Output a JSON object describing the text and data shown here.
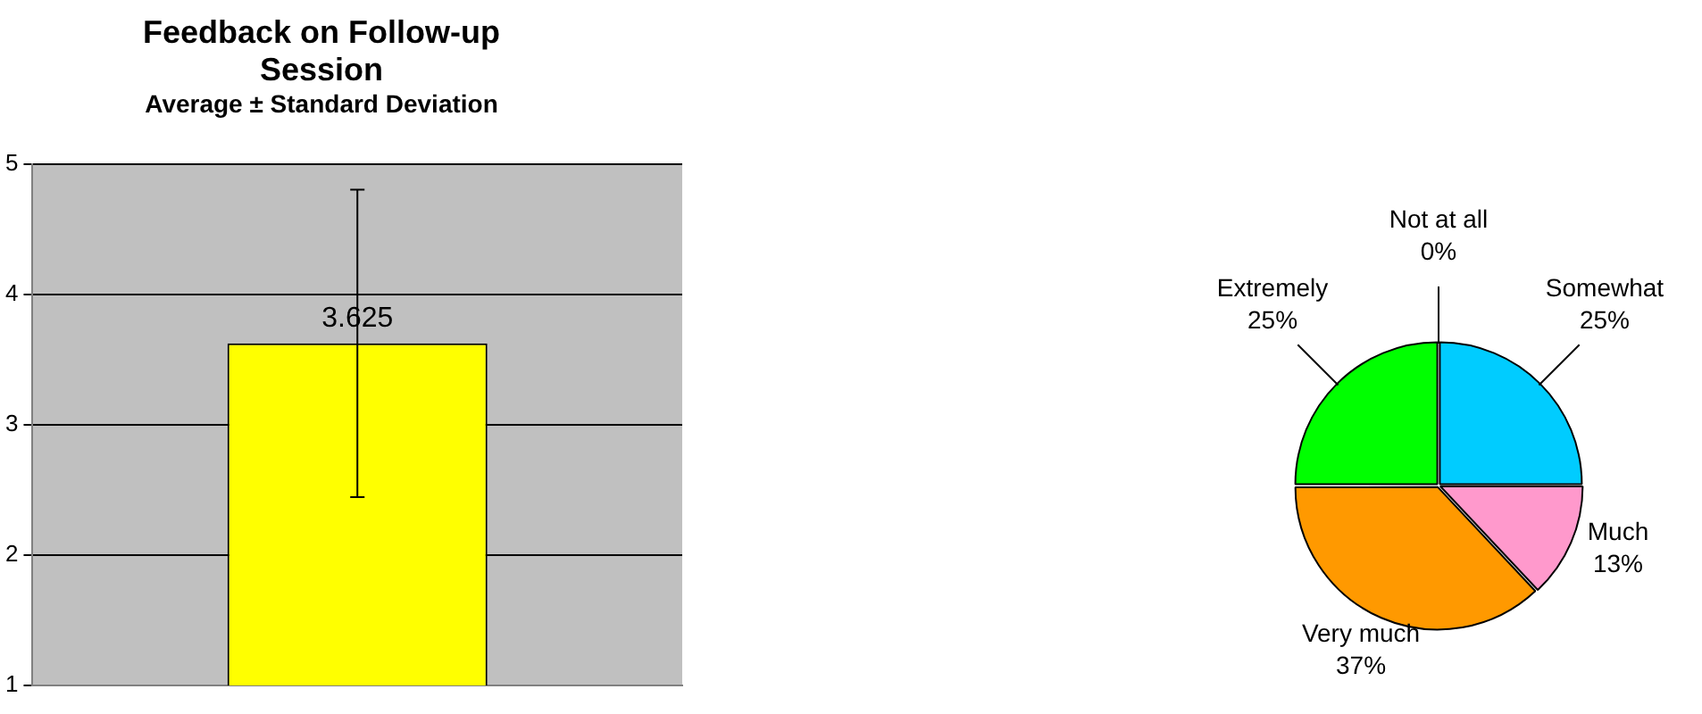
{
  "chart_data": [
    {
      "type": "bar",
      "title": "Feedback on Follow-up Session",
      "subtitle": "Average ± Standard Deviation",
      "categories": [
        null
      ],
      "values": [
        3.625
      ],
      "errors": [
        1.18
      ],
      "color": "#ffff00",
      "ylim": [
        1,
        5
      ],
      "yticks": [
        1,
        2,
        3,
        4,
        5
      ],
      "grid": "y",
      "data_labels": true,
      "tick_labels": "y"
    },
    {
      "type": "pie",
      "categories": [
        "Not at all",
        "Somewhat",
        "Much",
        "Very much",
        "Extremely"
      ],
      "values": [
        0,
        25,
        13,
        37,
        25
      ],
      "value_labels": [
        "0%",
        "25%",
        "13%",
        "37%",
        "25%"
      ],
      "colors": [
        "#808080",
        "#00ccff",
        "#ff99cc",
        "#ff9900",
        "#00ff00"
      ]
    }
  ]
}
